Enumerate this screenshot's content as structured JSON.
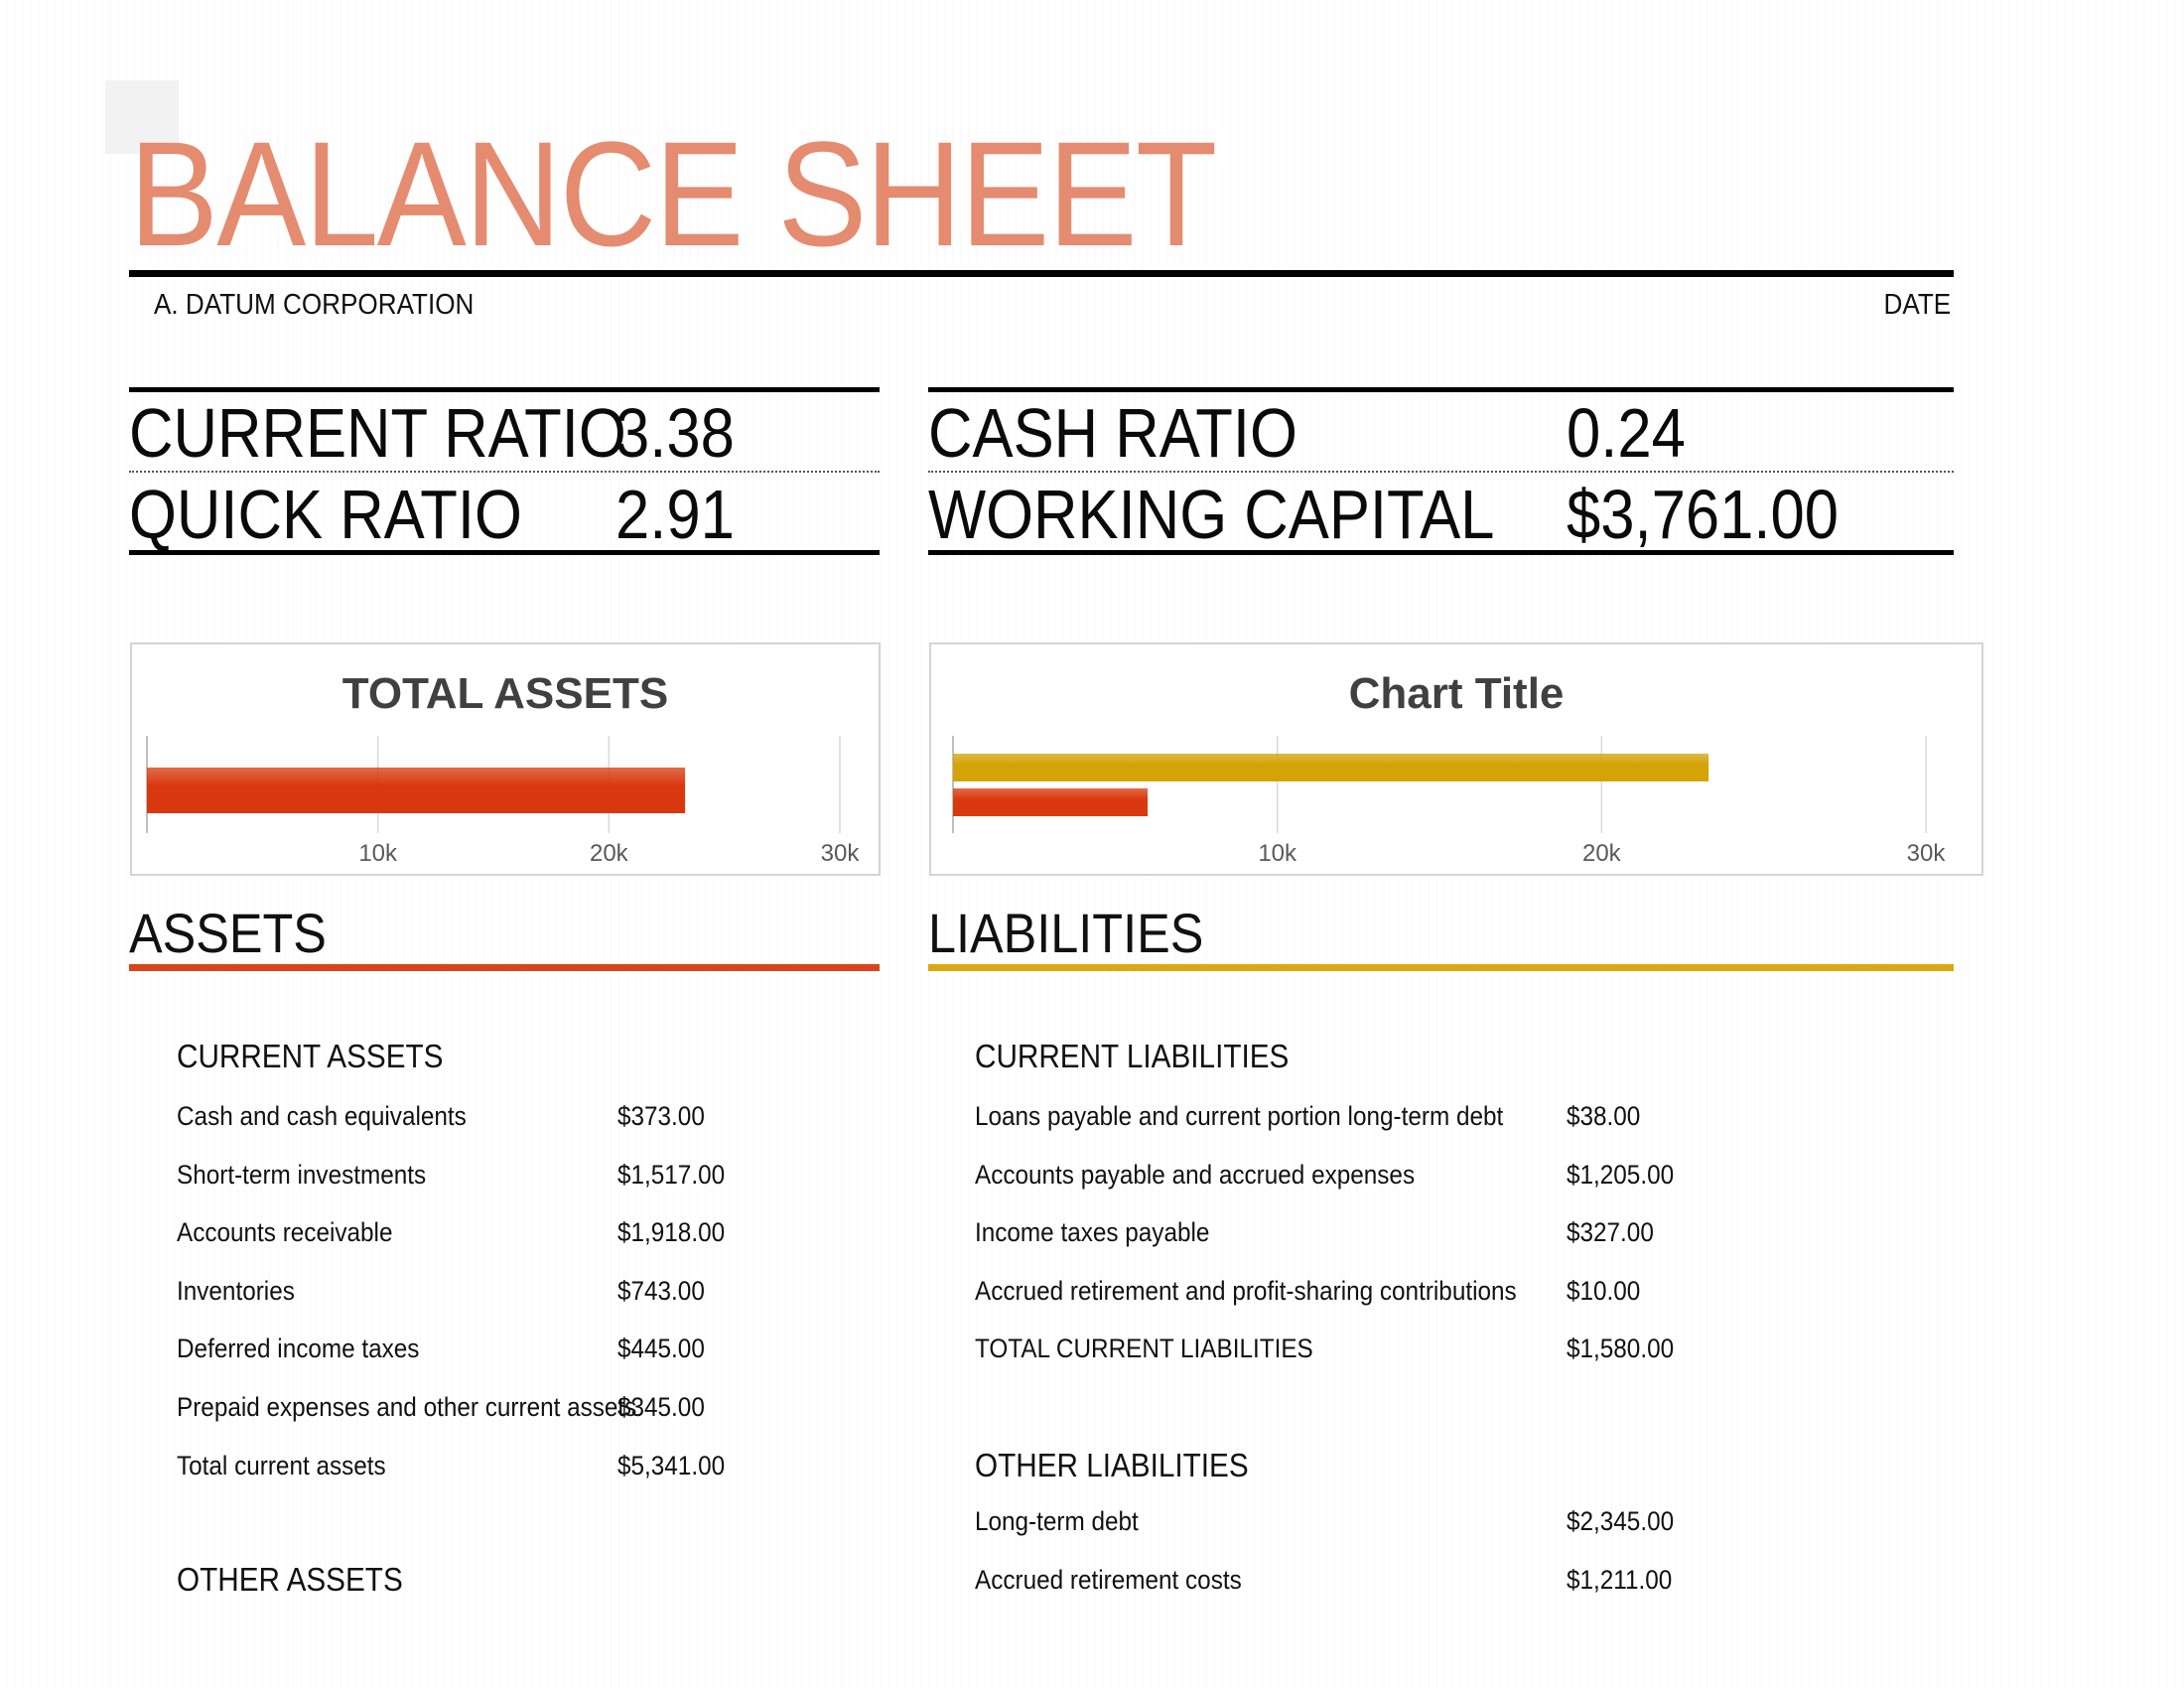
{
  "header": {
    "title": "BALANCE SHEET",
    "company": "A. DATUM CORPORATION",
    "date": "DATE"
  },
  "ratios": {
    "current_ratio_label": "CURRENT RATIO",
    "current_ratio_value": "3.38",
    "quick_ratio_label": "QUICK RATIO",
    "quick_ratio_value": "2.91",
    "cash_ratio_label": "CASH RATIO",
    "cash_ratio_value": "0.24",
    "working_capital_label": "WORKING CAPITAL",
    "working_capital_value": "$3,761.00"
  },
  "chart_data": [
    {
      "type": "bar",
      "orientation": "horizontal",
      "title": "TOTAL ASSETS",
      "series": [
        {
          "values": [
            23300
          ],
          "color": "#D9380E"
        }
      ],
      "xlim": [
        0,
        30000
      ],
      "xticks": [
        "10k",
        "20k",
        "30k"
      ],
      "grid": true
    },
    {
      "type": "bar",
      "orientation": "horizontal",
      "title": "Chart Title",
      "series": [
        {
          "values": [
            23300
          ],
          "color": "#D4A306"
        },
        {
          "values": [
            6000
          ],
          "color": "#D9380E"
        }
      ],
      "xlim": [
        0,
        30000
      ],
      "xticks": [
        "10k",
        "20k",
        "30k"
      ],
      "grid": true
    }
  ],
  "assets": {
    "heading": "ASSETS",
    "accent": "#D9441C",
    "current_heading": "CURRENT ASSETS",
    "current_rows": [
      {
        "label": "Cash and cash equivalents",
        "value": "$373.00"
      },
      {
        "label": "Short-term investments",
        "value": "$1,517.00"
      },
      {
        "label": "Accounts receivable",
        "value": "$1,918.00"
      },
      {
        "label": "Inventories",
        "value": "$743.00"
      },
      {
        "label": "Deferred income taxes",
        "value": "$445.00"
      },
      {
        "label": "Prepaid expenses and other current assets",
        "value": "$345.00"
      },
      {
        "label": "Total current assets",
        "value": "$5,341.00"
      }
    ],
    "other_heading": "OTHER ASSETS"
  },
  "liabilities": {
    "heading": "LIABILITIES",
    "accent": "#D9A90F",
    "current_heading": "CURRENT LIABILITIES",
    "current_rows": [
      {
        "label": "Loans payable and current portion long-term debt",
        "value": "$38.00"
      },
      {
        "label": "Accounts payable and accrued expenses",
        "value": "$1,205.00"
      },
      {
        "label": "Income taxes payable",
        "value": "$327.00"
      },
      {
        "label": "Accrued retirement and profit-sharing contributions",
        "value": "$10.00"
      },
      {
        "label": "TOTAL CURRENT LIABILITIES",
        "value": "$1,580.00"
      }
    ],
    "other_heading": "OTHER LIABILITIES",
    "other_rows": [
      {
        "label": "Long-term debt",
        "value": "$2,345.00"
      },
      {
        "label": "Accrued retirement costs",
        "value": "$1,211.00"
      }
    ]
  }
}
